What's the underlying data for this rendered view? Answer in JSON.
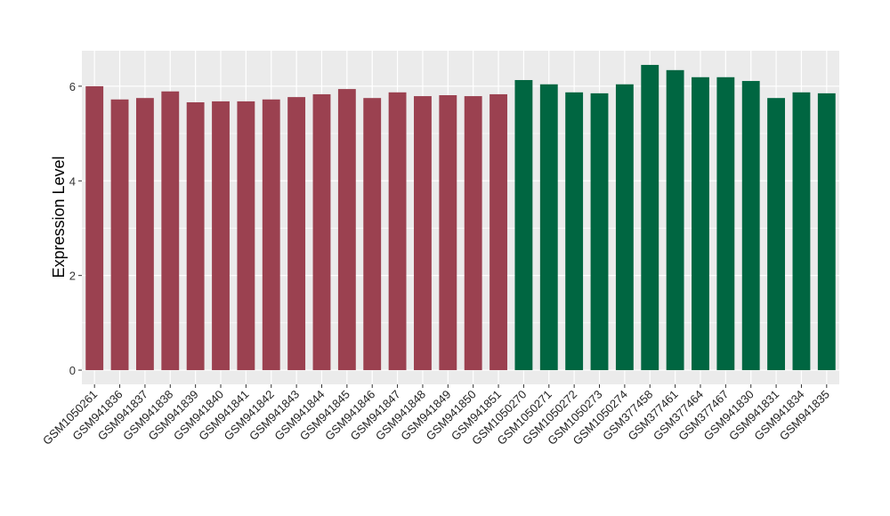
{
  "chart_data": {
    "type": "bar",
    "title": "",
    "xlabel": "",
    "ylabel": "Expression Level",
    "ylim": [
      -0.3,
      6.75
    ],
    "yticks": [
      0,
      2,
      4,
      6
    ],
    "grid": true,
    "categories": [
      "GSM1050261",
      "GSM941836",
      "GSM941837",
      "GSM941838",
      "GSM941839",
      "GSM941840",
      "GSM941841",
      "GSM941842",
      "GSM941843",
      "GSM941844",
      "GSM941845",
      "GSM941846",
      "GSM941847",
      "GSM941848",
      "GSM941849",
      "GSM941850",
      "GSM941851",
      "GSM1050270",
      "GSM1050271",
      "GSM1050272",
      "GSM1050273",
      "GSM1050274",
      "GSM377458",
      "GSM377461",
      "GSM377464",
      "GSM377467",
      "GSM941830",
      "GSM941831",
      "GSM941834",
      "GSM941835"
    ],
    "values": [
      6.0,
      5.72,
      5.75,
      5.89,
      5.66,
      5.68,
      5.68,
      5.72,
      5.77,
      5.83,
      5.94,
      5.75,
      5.87,
      5.79,
      5.81,
      5.79,
      5.83,
      6.13,
      6.04,
      5.87,
      5.85,
      6.04,
      6.45,
      6.34,
      6.19,
      6.19,
      6.11,
      5.75,
      5.87,
      5.85
    ],
    "groups": [
      0,
      0,
      0,
      0,
      0,
      0,
      0,
      0,
      0,
      0,
      0,
      0,
      0,
      0,
      0,
      0,
      0,
      1,
      1,
      1,
      1,
      1,
      1,
      1,
      1,
      1,
      1,
      1,
      1,
      1
    ],
    "colors": [
      "#9b4150",
      "#006641"
    ],
    "panel_bg": "#ebebeb"
  }
}
